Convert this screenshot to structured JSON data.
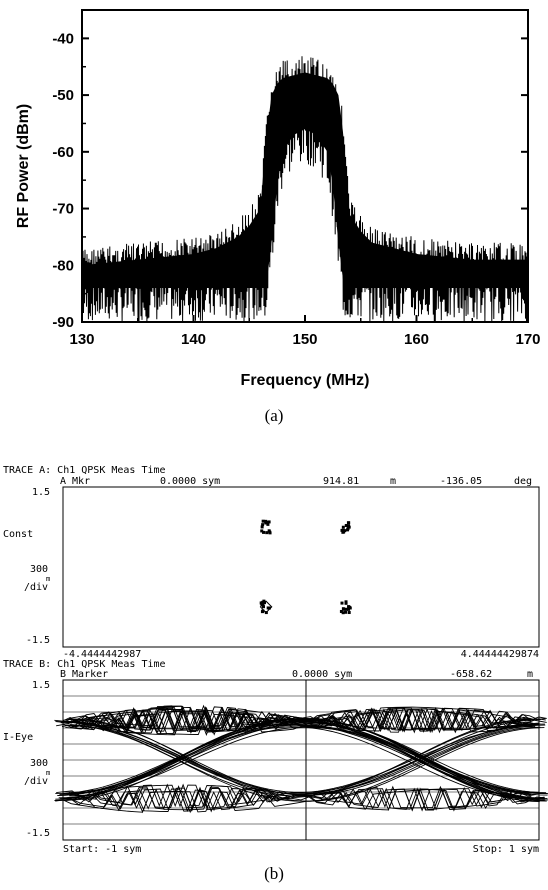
{
  "chart_data": [
    {
      "type": "line",
      "title": "",
      "xlabel": "Frequency (MHz)",
      "ylabel": "RF Power (dBm)",
      "xlim": [
        130,
        170
      ],
      "ylim": [
        -90,
        -35
      ],
      "xticks": [
        130,
        140,
        150,
        160,
        170
      ],
      "yticks": [
        -90,
        -80,
        -70,
        -60,
        -50,
        -40
      ],
      "grid": false,
      "caption": "(a)",
      "series": [
        {
          "x": [
            130,
            135,
            140,
            142,
            144,
            145,
            146,
            146.5,
            147,
            147.5,
            148,
            149,
            150,
            151,
            152,
            152.5,
            153,
            153.5,
            154,
            155,
            156,
            158,
            160,
            165,
            170
          ],
          "floor": [
            -90,
            -90,
            -90,
            -90,
            -90,
            -90,
            -90,
            -90,
            -82,
            -72,
            -66,
            -63,
            -62,
            -63,
            -66,
            -72,
            -82,
            -90,
            -90,
            -90,
            -90,
            -90,
            -90,
            -90,
            -90
          ],
          "peak": [
            -77,
            -76,
            -75,
            -74,
            -72,
            -70,
            -67,
            -55,
            -47,
            -45,
            -44,
            -43.5,
            -43,
            -43.5,
            -44,
            -45,
            -47,
            -55,
            -68,
            -71,
            -73,
            -74,
            -75,
            -76,
            -76
          ]
        }
      ]
    },
    {
      "type": "scatter",
      "caption": "(b)",
      "trace_a": {
        "header": "TRACE A: Ch1 QPSK Meas Time",
        "marker": "A Mkr",
        "marker_pos": "0.0000 sym",
        "marker_mag": "914.81",
        "marker_mag_unit": "m",
        "marker_phase": "-136.05",
        "marker_phase_unit": "deg",
        "y_top": "1.5",
        "y_bottom": "-1.5",
        "name": "Const",
        "scale": "300",
        "scale_unit": "m",
        "scale_div": "/div",
        "x_left": "-4.4444442987",
        "x_right": "4.44444429874",
        "points": [
          {
            "i": -0.7,
            "q": 0.7
          },
          {
            "i": 0.7,
            "q": 0.7
          },
          {
            "i": -0.7,
            "q": -0.7
          },
          {
            "i": 0.7,
            "q": -0.7
          }
        ]
      },
      "trace_b": {
        "header": "TRACE B: Ch1 QPSK Meas Time",
        "marker": "B Marker",
        "marker_pos": "0.0000 sym",
        "marker_val": "-658.62",
        "marker_unit": "m",
        "y_top": "1.5",
        "y_bottom": "-1.5",
        "name": "I-Eye",
        "scale": "300",
        "scale_unit": "m",
        "scale_div": "/div",
        "start": "Start: -1 sym",
        "stop": "Stop: 1 sym",
        "levels": [
          0.7,
          -0.7
        ]
      }
    }
  ]
}
